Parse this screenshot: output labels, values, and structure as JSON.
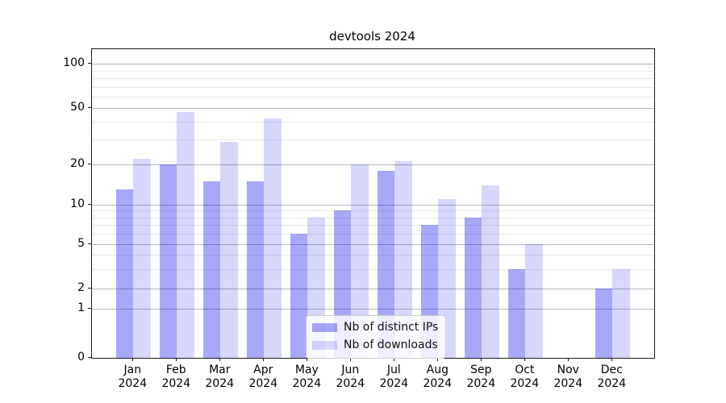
{
  "chart_data": {
    "type": "bar",
    "title": "devtools 2024",
    "categories": [
      "Jan 2024",
      "Feb 2024",
      "Mar 2024",
      "Apr 2024",
      "May 2024",
      "Jun 2024",
      "Jul 2024",
      "Aug 2024",
      "Sep 2024",
      "Oct 2024",
      "Nov 2024",
      "Dec 2024"
    ],
    "month_labels": [
      "Jan",
      "Feb",
      "Mar",
      "Apr",
      "May",
      "Jun",
      "Jul",
      "Aug",
      "Sep",
      "Oct",
      "Nov",
      "Dec"
    ],
    "year_label": "2024",
    "series": [
      {
        "name": "Nb of distinct IPs",
        "values": [
          13,
          20,
          15,
          15,
          6,
          9,
          18,
          7,
          8,
          3,
          0,
          2
        ],
        "color": "#0000ee",
        "alpha": 0.34
      },
      {
        "name": "Nb of downloads",
        "values": [
          22,
          47,
          29,
          42,
          8,
          20,
          21,
          11,
          14,
          5,
          0,
          3
        ],
        "color": "#0000ee",
        "alpha": 0.155
      }
    ],
    "ylabel": "",
    "xlabel": "",
    "y_ticks": [
      0,
      1,
      2,
      5,
      10,
      20,
      50,
      100
    ],
    "y_minor_gridlines": [
      3,
      4,
      6,
      7,
      8,
      9,
      30,
      40,
      60,
      70,
      80,
      90
    ],
    "yscale": "log-like (custom), linear below 1",
    "ylim": [
      0,
      130
    ],
    "grid": true,
    "legend_position": "lower center"
  },
  "colors": {
    "background": "#ffffff",
    "major_grid": "#b5b5b5",
    "minor_grid": "#e9e9e9",
    "spine": "#1a1a1a",
    "legend_border": "#cccccc"
  }
}
